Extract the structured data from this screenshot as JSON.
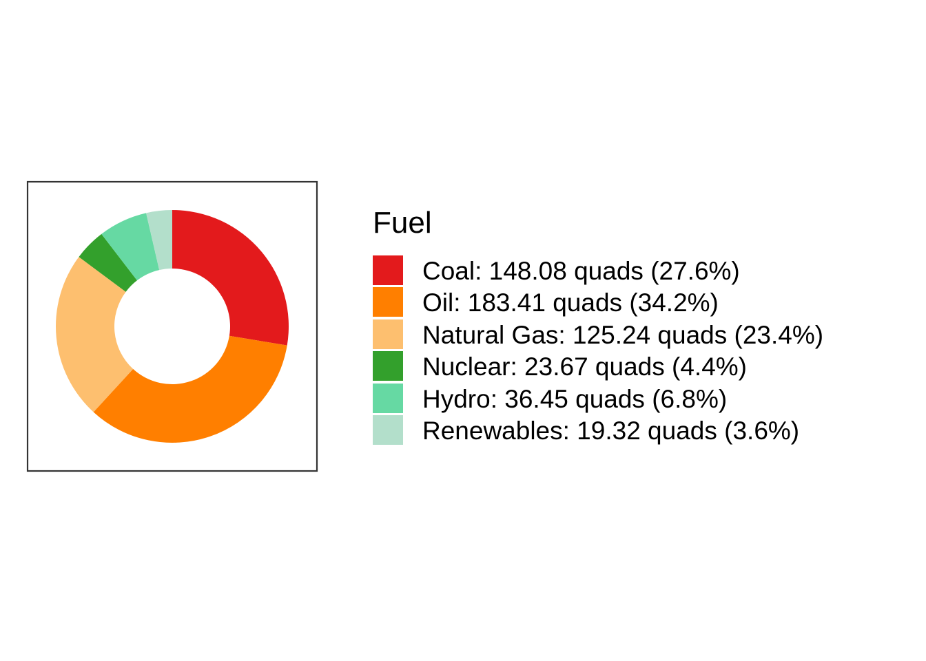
{
  "chart_data": {
    "type": "pie",
    "donut": true,
    "legend_title": "Fuel",
    "legend_position": "right",
    "unit": "quads",
    "slices": [
      {
        "name": "Coal",
        "value": 148.08,
        "percent": 27.6,
        "color": "#E31A1C",
        "label": "Coal: 148.08 quads (27.6%)"
      },
      {
        "name": "Oil",
        "value": 183.41,
        "percent": 34.2,
        "color": "#FF7F00",
        "label": "Oil: 183.41 quads (34.2%)"
      },
      {
        "name": "Natural Gas",
        "value": 125.24,
        "percent": 23.4,
        "color": "#FDBF6F",
        "label": "Natural Gas: 125.24 quads (23.4%)"
      },
      {
        "name": "Nuclear",
        "value": 23.67,
        "percent": 4.4,
        "color": "#33A02C",
        "label": "Nuclear: 23.67 quads (4.4%)"
      },
      {
        "name": "Hydro",
        "value": 36.45,
        "percent": 6.8,
        "color": "#66D9A3",
        "label": "Hydro: 36.45 quads (6.8%)"
      },
      {
        "name": "Renewables",
        "value": 19.32,
        "percent": 3.6,
        "color": "#B3DFCB",
        "label": "Renewables: 19.32 quads (3.6%)"
      }
    ]
  }
}
